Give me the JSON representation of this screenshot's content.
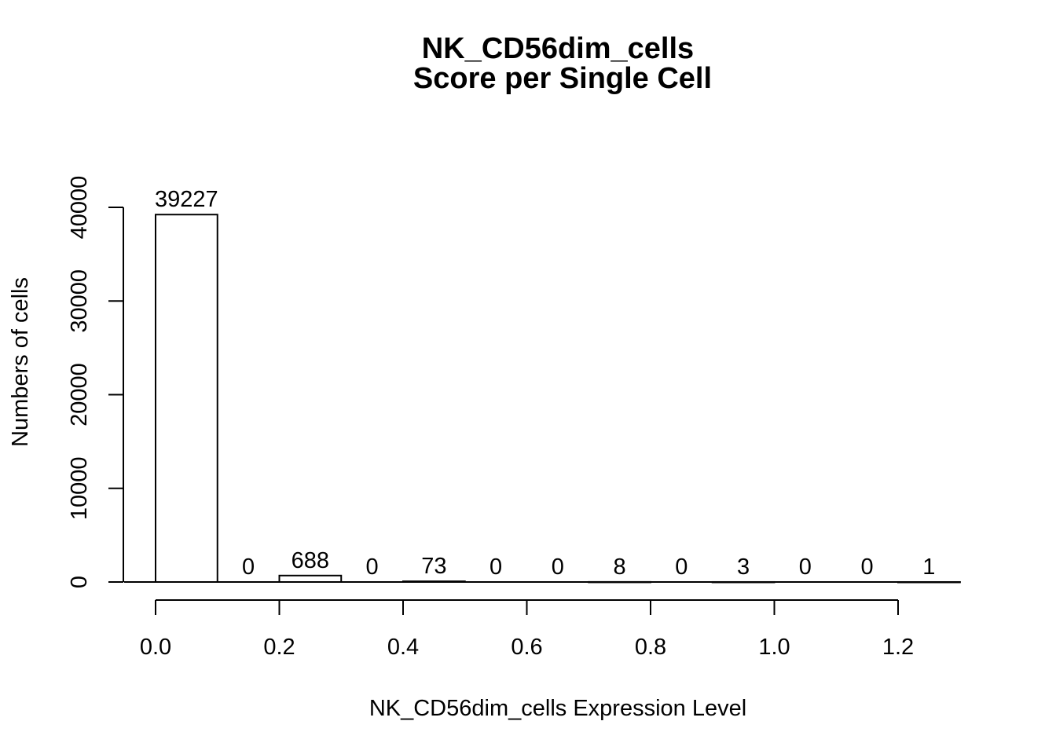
{
  "chart_data": {
    "type": "bar",
    "title": "NK_CD56dim_cells",
    "subtitle": "Score per Single Cell",
    "xlabel": "NK_CD56dim_cells Expression Level",
    "ylabel": "Numbers of cells",
    "bin_width": 0.1,
    "bins": [
      {
        "x_start": 0.0,
        "x_end": 0.1,
        "value": 39227,
        "label": "39227"
      },
      {
        "x_start": 0.1,
        "x_end": 0.2,
        "value": 0,
        "label": "0"
      },
      {
        "x_start": 0.2,
        "x_end": 0.3,
        "value": 688,
        "label": "688"
      },
      {
        "x_start": 0.3,
        "x_end": 0.4,
        "value": 0,
        "label": "0"
      },
      {
        "x_start": 0.4,
        "x_end": 0.5,
        "value": 73,
        "label": "73"
      },
      {
        "x_start": 0.5,
        "x_end": 0.6,
        "value": 0,
        "label": "0"
      },
      {
        "x_start": 0.6,
        "x_end": 0.7,
        "value": 0,
        "label": "0"
      },
      {
        "x_start": 0.7,
        "x_end": 0.8,
        "value": 8,
        "label": "8"
      },
      {
        "x_start": 0.8,
        "x_end": 0.9,
        "value": 0,
        "label": "0"
      },
      {
        "x_start": 0.9,
        "x_end": 1.0,
        "value": 3,
        "label": "3"
      },
      {
        "x_start": 1.0,
        "x_end": 1.1,
        "value": 0,
        "label": "0"
      },
      {
        "x_start": 1.1,
        "x_end": 1.2,
        "value": 0,
        "label": "0"
      },
      {
        "x_start": 1.2,
        "x_end": 1.3,
        "value": 1,
        "label": "1"
      }
    ],
    "x_ticks": [
      {
        "value": 0.0,
        "label": "0.0"
      },
      {
        "value": 0.2,
        "label": "0.2"
      },
      {
        "value": 0.4,
        "label": "0.4"
      },
      {
        "value": 0.6,
        "label": "0.6"
      },
      {
        "value": 0.8,
        "label": "0.8"
      },
      {
        "value": 1.0,
        "label": "1.0"
      },
      {
        "value": 1.2,
        "label": "1.2"
      }
    ],
    "y_ticks": [
      {
        "value": 0,
        "label": "0"
      },
      {
        "value": 10000,
        "label": "10000"
      },
      {
        "value": 20000,
        "label": "20000"
      },
      {
        "value": 30000,
        "label": "30000"
      },
      {
        "value": 40000,
        "label": "40000"
      }
    ],
    "xlim": [
      0.0,
      1.3
    ],
    "ylim": [
      0,
      40000
    ],
    "grid": false,
    "bar_fill": "#ffffff",
    "bar_stroke": "#000000"
  }
}
